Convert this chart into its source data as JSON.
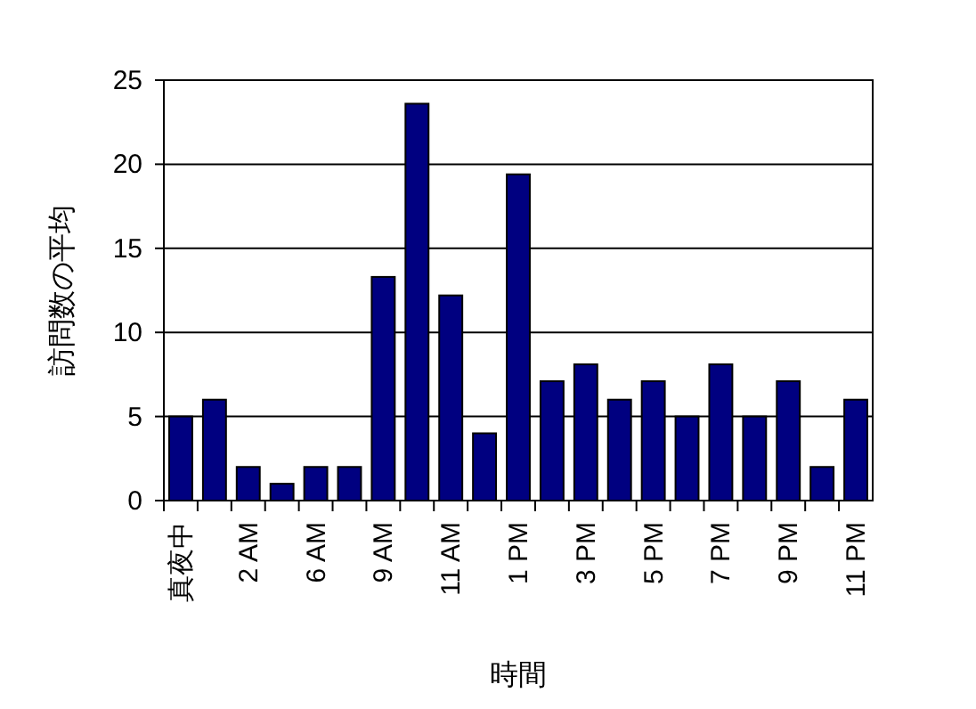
{
  "chart_data": {
    "type": "bar",
    "xlabel": "時間",
    "ylabel": "訪問数の平均",
    "categories": [
      "真夜中",
      null,
      "2 AM",
      null,
      "6 AM",
      null,
      "9 AM",
      null,
      "11 AM",
      null,
      "1 PM",
      null,
      "3 PM",
      null,
      "5 PM",
      null,
      "7 PM",
      null,
      "9 PM",
      null,
      "11 PM"
    ],
    "values": [
      5,
      6,
      2,
      1,
      2,
      2,
      13.3,
      23.6,
      12.2,
      4,
      19.4,
      7.1,
      8.1,
      6,
      7.1,
      5,
      8.1,
      5,
      7.1,
      2,
      6
    ],
    "color": "#000080",
    "ylim": [
      0,
      25
    ],
    "yticks": [
      0,
      5,
      10,
      15,
      20,
      25
    ],
    "grid": "y"
  }
}
